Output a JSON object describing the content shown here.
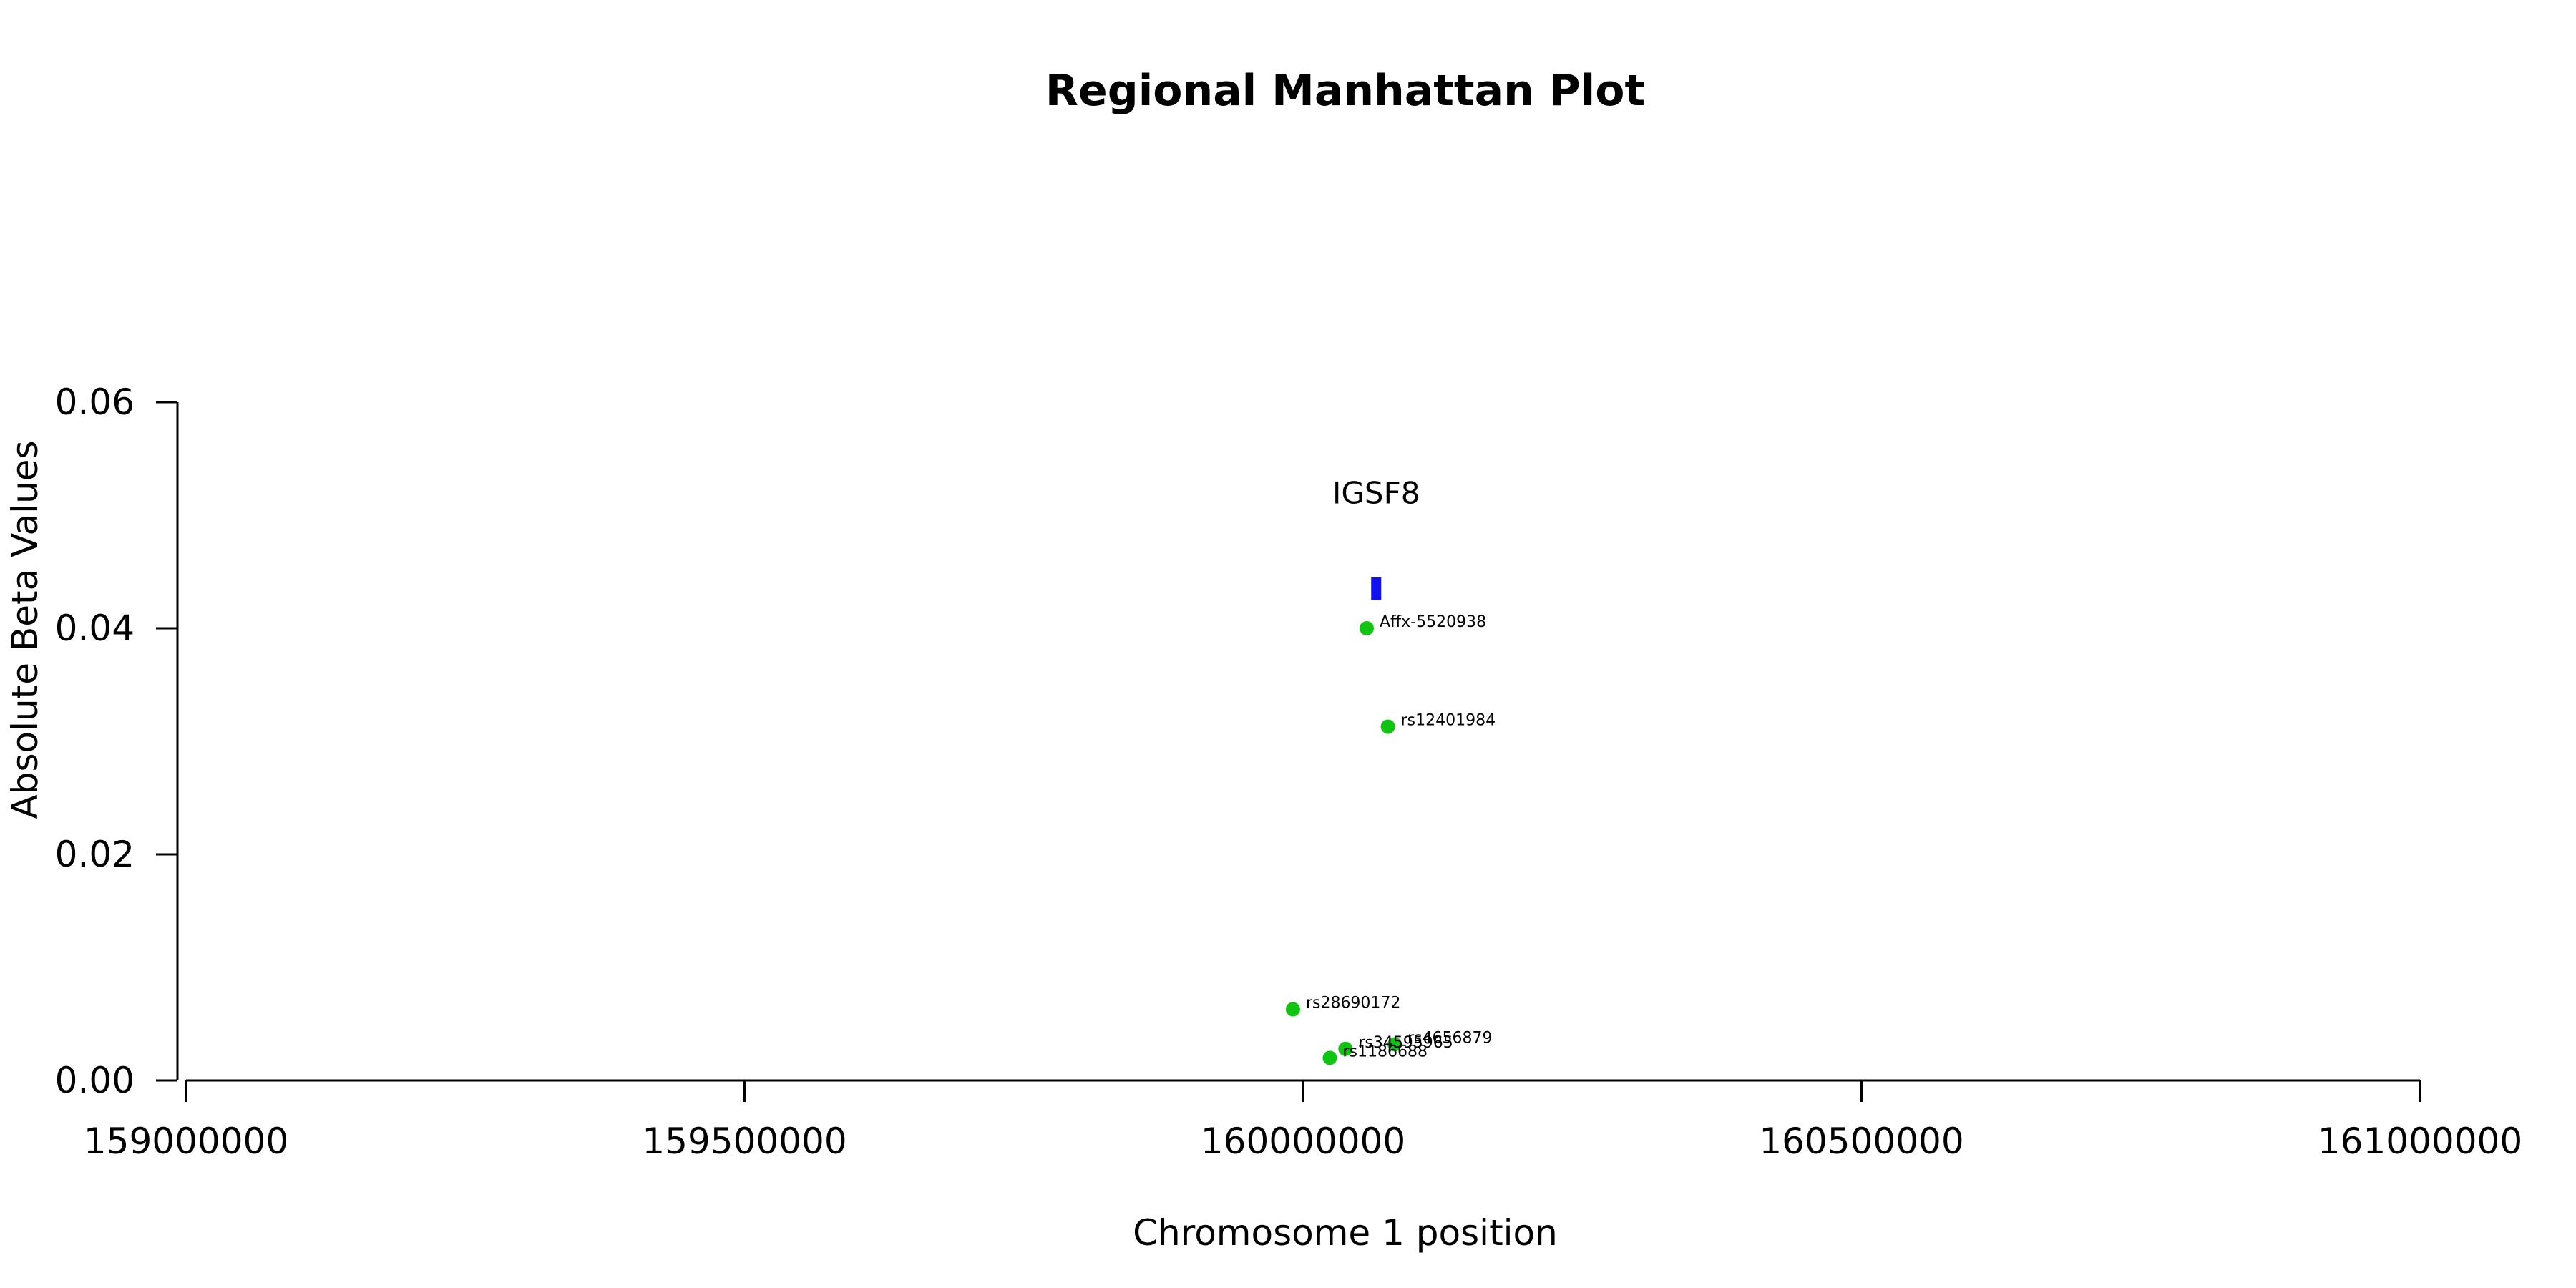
{
  "chart_data": {
    "type": "scatter",
    "title": "Regional Manhattan Plot",
    "xlabel": "Chromosome 1 position",
    "ylabel": "Absolute Beta Values",
    "xlim": [
      159000000,
      161000000
    ],
    "ylim": [
      0,
      0.06
    ],
    "x_ticks": [
      "159000000",
      "159500000",
      "160000000",
      "160500000",
      "161000000"
    ],
    "y_ticks": [
      "0.00",
      "0.02",
      "0.04",
      "0.06"
    ],
    "grid": false,
    "legend": "none",
    "colors": {
      "point": "#11c411",
      "gene": "#1111ee",
      "axis": "#000000"
    },
    "gene": {
      "name": "IGSF8",
      "start": 160061000,
      "end": 160070000,
      "y_bottom": 0.0425,
      "y_top": 0.0445,
      "label_y": 0.052
    },
    "points": [
      {
        "snp": "Affx-5520938",
        "x": 160057000,
        "y": 0.04
      },
      {
        "snp": "rs12401984",
        "x": 160076000,
        "y": 0.0313
      },
      {
        "snp": "rs28690172",
        "x": 159991000,
        "y": 0.0063
      },
      {
        "snp": "rs4656879",
        "x": 160082000,
        "y": 0.0032
      },
      {
        "snp": "rs34595965",
        "x": 160038000,
        "y": 0.0028
      },
      {
        "snp": "rs1186688",
        "x": 160024000,
        "y": 0.002
      }
    ]
  }
}
